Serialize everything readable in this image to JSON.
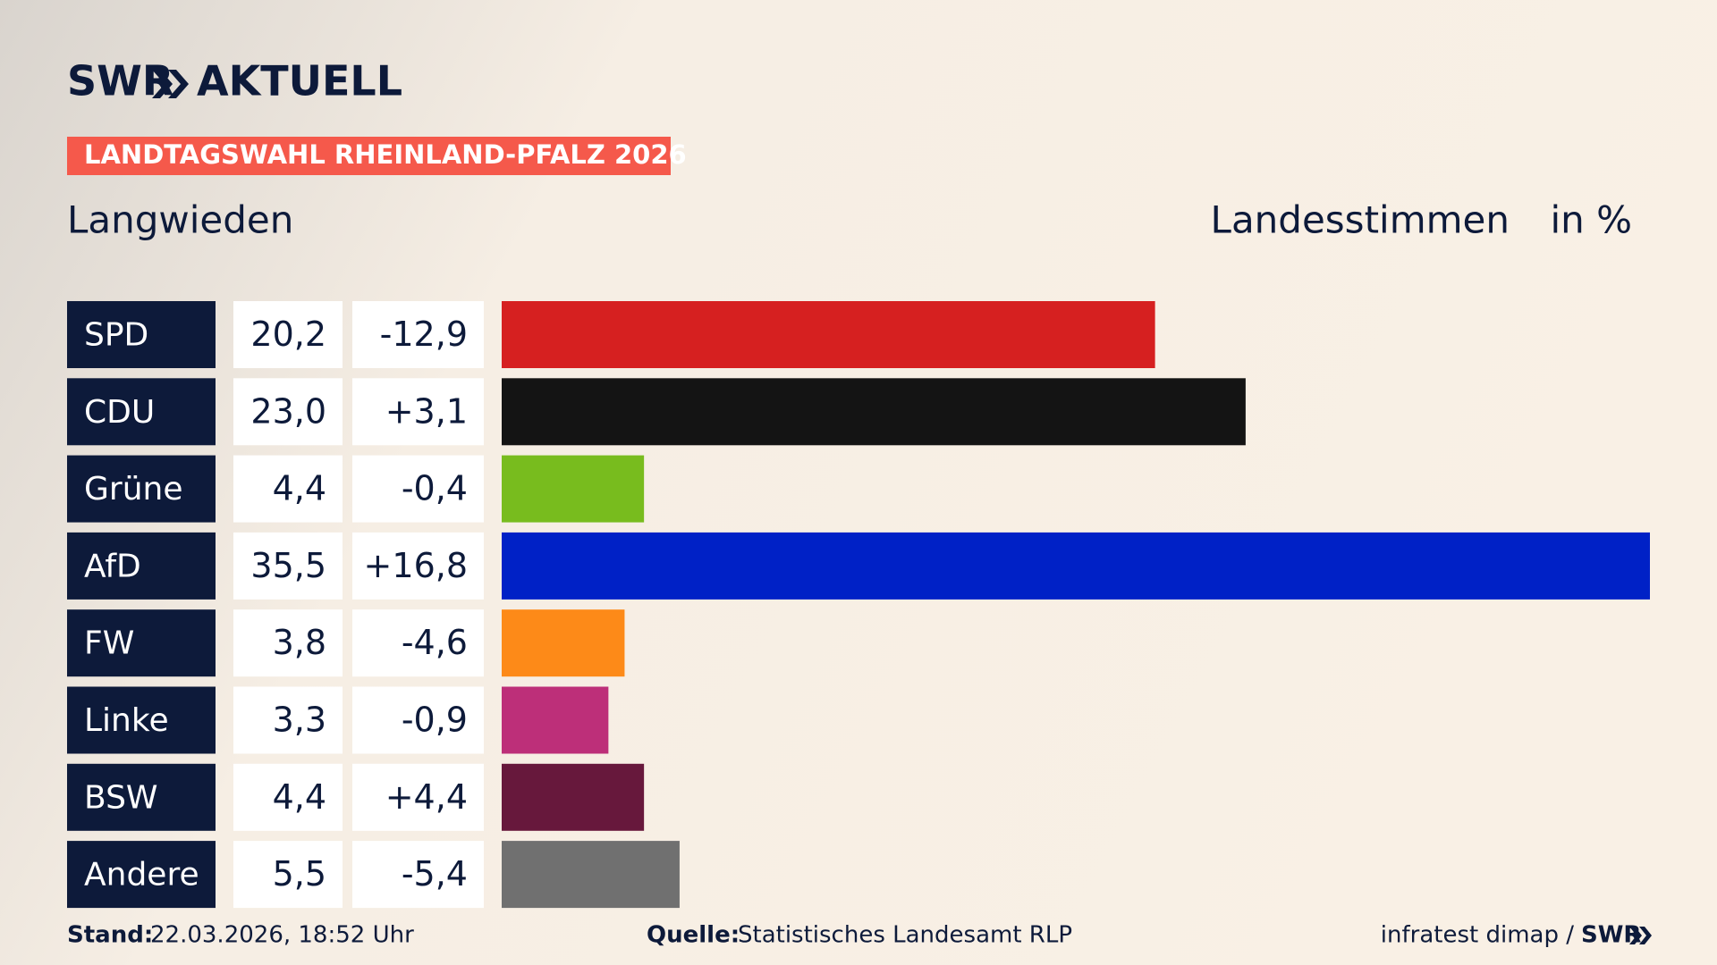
{
  "header": {
    "logo": "SWR",
    "logo_suffix": "AKTUELL",
    "kicker": "LANDTAGSWAHL RHEINLAND-PFALZ 2026"
  },
  "chart_data": {
    "type": "bar",
    "orientation": "horizontal",
    "title": "Langwieden",
    "subtitle": "Landesstimmen",
    "unit": "in %",
    "categories": [
      "SPD",
      "CDU",
      "Grüne",
      "AfD",
      "FW",
      "Linke",
      "BSW",
      "Andere"
    ],
    "values": [
      20.2,
      23.0,
      4.4,
      35.5,
      3.8,
      3.3,
      4.4,
      5.5
    ],
    "value_labels": [
      "20,2",
      "23,0",
      "4,4",
      "35,5",
      "3,8",
      "3,3",
      "4,4",
      "5,5"
    ],
    "changes": [
      -12.9,
      3.1,
      -0.4,
      16.8,
      -4.6,
      -0.9,
      4.4,
      -5.4
    ],
    "change_labels": [
      "-12,9",
      "+3,1",
      "-0,4",
      "+16,8",
      "-4,6",
      "-0,9",
      "+4,4",
      "-5,4"
    ],
    "colors": [
      "#d62020",
      "#141414",
      "#78bc1e",
      "#0021c6",
      "#fd8a18",
      "#bd2f79",
      "#67183c",
      "#707070"
    ],
    "xlim": [
      0,
      35.5
    ]
  },
  "footer": {
    "stand_label": "Stand:",
    "stand": "22.03.2026, 18:52 Uhr",
    "source_label": "Quelle:",
    "source": "Statistisches Landesamt RLP",
    "credit": "infratest dimap /",
    "credit_logo": "SWR"
  }
}
